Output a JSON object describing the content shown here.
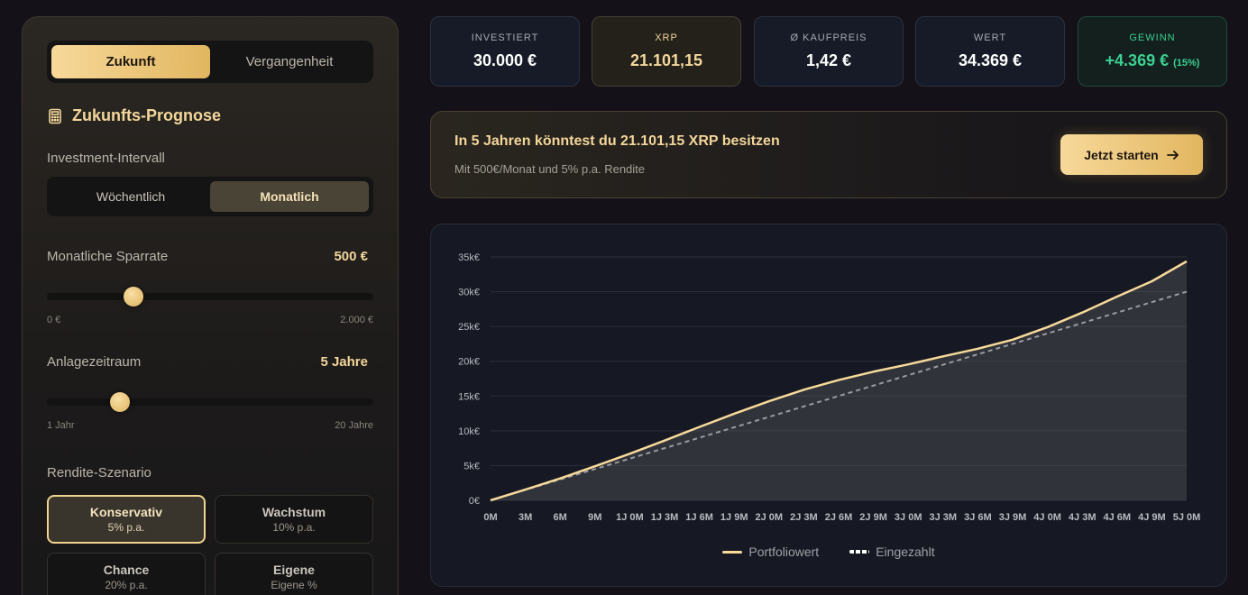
{
  "mode_tabs": [
    "Zukunft",
    "Vergangenheit"
  ],
  "section_title": "Zukunfts-Prognose",
  "interval": {
    "label": "Investment-Intervall",
    "options": [
      "Wöchentlich",
      "Monatlich"
    ],
    "selected": "Monatlich"
  },
  "savings_rate": {
    "label": "Monatliche Sparrate",
    "value": "500 €",
    "min_label": "0 €",
    "max_label": "2.000 €",
    "fraction": 0.265
  },
  "duration": {
    "label": "Anlagezeitraum",
    "value": "5 Jahre",
    "min_label": "1 Jahr",
    "max_label": "20 Jahre",
    "fraction": 0.225
  },
  "scenario": {
    "label": "Rendite-Szenario",
    "options": [
      {
        "name": "Konservativ",
        "rate": "5% p.a.",
        "active": true
      },
      {
        "name": "Wachstum",
        "rate": "10% p.a.",
        "active": false
      },
      {
        "name": "Chance",
        "rate": "20% p.a.",
        "active": false
      },
      {
        "name": "Eigene",
        "rate": "Eigene %",
        "active": false
      }
    ]
  },
  "stats": [
    {
      "title": "INVESTIERT",
      "value": "30.000 €",
      "variant": "default"
    },
    {
      "title": "XRP",
      "value": "21.101,15",
      "variant": "gold"
    },
    {
      "title": "Ø KAUFPREIS",
      "value": "1,42 €",
      "variant": "default"
    },
    {
      "title": "WERT",
      "value": "34.369 €",
      "variant": "default"
    },
    {
      "title": "GEWINN",
      "value": "+4.369 €",
      "pct": "(15%)",
      "variant": "green"
    }
  ],
  "banner": {
    "headline": "In 5 Jahren könntest du 21.101,15 XRP besitzen",
    "sub": "Mit 500€/Monat und 5% p.a. Rendite",
    "cta": "Jetzt starten"
  },
  "colors": {
    "gold": "#f7d99a",
    "green": "#3ccf93"
  },
  "chart_data": {
    "type": "line",
    "x": [
      "0M",
      "3M",
      "6M",
      "9M",
      "1J 0M",
      "1J 3M",
      "1J 6M",
      "1J 9M",
      "2J 0M",
      "2J 3M",
      "2J 6M",
      "2J 9M",
      "3J 0M",
      "3J 3M",
      "3J 6M",
      "3J 9M",
      "4J 0M",
      "4J 3M",
      "4J 6M",
      "4J 9M",
      "5J 0M"
    ],
    "y_ticks": [
      "0€",
      "5k€",
      "10k€",
      "15k€",
      "20k€",
      "25k€",
      "30k€",
      "35k€"
    ],
    "ylim": [
      0,
      35000
    ],
    "series": [
      {
        "name": "Portfoliowert",
        "color": "#f7d99a",
        "style": "solid",
        "values": [
          0,
          1550,
          3150,
          4900,
          6700,
          8600,
          10550,
          12450,
          14250,
          15900,
          17300,
          18500,
          19550,
          20700,
          21800,
          23100,
          24900,
          27000,
          29300,
          31500,
          34369
        ]
      },
      {
        "name": "Eingezahlt",
        "color": "#9a9aa0",
        "style": "dashed",
        "values": [
          0,
          1500,
          3000,
          4500,
          6000,
          7500,
          9000,
          10500,
          12000,
          13500,
          15000,
          16500,
          18000,
          19500,
          21000,
          22500,
          24000,
          25500,
          27000,
          28500,
          30000
        ]
      }
    ],
    "legend_position": "bottom",
    "grid": true
  }
}
